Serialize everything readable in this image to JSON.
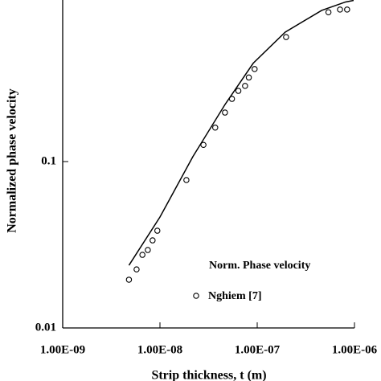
{
  "chart_data": {
    "type": "scatter",
    "y_label": "Normalized phase velocity",
    "x_label": "Strip thickness, t (m)",
    "xscale": "log",
    "yscale": "log",
    "xlim": [
      1e-09,
      1e-06
    ],
    "ylim": [
      0.01,
      1
    ],
    "xticks": [
      {
        "value": 1e-09,
        "label": "1.00E-09"
      },
      {
        "value": 1e-08,
        "label": "1.00E-08"
      },
      {
        "value": 1e-07,
        "label": "1.00E-07"
      },
      {
        "value": 1e-06,
        "label": "1.00E-06"
      }
    ],
    "yticks": [
      0.01,
      0.1
    ],
    "series": [
      {
        "name": "Norm. Phase velocity",
        "kind": "line",
        "color": "#000000",
        "x": [
          4.8e-09,
          1e-08,
          2.18e-08,
          4.66e-08,
          9.1e-08,
          1.94e-07,
          4.6e-07,
          8.1e-07,
          9.8e-07
        ],
        "values": [
          0.0238,
          0.0464,
          0.107,
          0.22,
          0.39,
          0.6,
          0.81,
          0.91,
          0.93
        ]
      },
      {
        "name": "Nghiem [7]",
        "kind": "markers",
        "color": "#000000",
        "x": [
          4.8e-09,
          5.75e-09,
          6.6e-09,
          7.5e-09,
          8.4e-09,
          9.4e-09,
          1.87e-08,
          2.8e-08,
          3.7e-08,
          4.66e-08,
          5.5e-08,
          6.4e-08,
          7.5e-08,
          8.2e-08,
          9.4e-08,
          1.98e-07,
          5.4e-07,
          7.1e-07,
          8.4e-07
        ],
        "values": [
          0.0195,
          0.0225,
          0.0275,
          0.0294,
          0.0336,
          0.0384,
          0.0774,
          0.126,
          0.16,
          0.197,
          0.238,
          0.266,
          0.285,
          0.32,
          0.36,
          0.56,
          0.79,
          0.82,
          0.82
        ]
      }
    ]
  }
}
